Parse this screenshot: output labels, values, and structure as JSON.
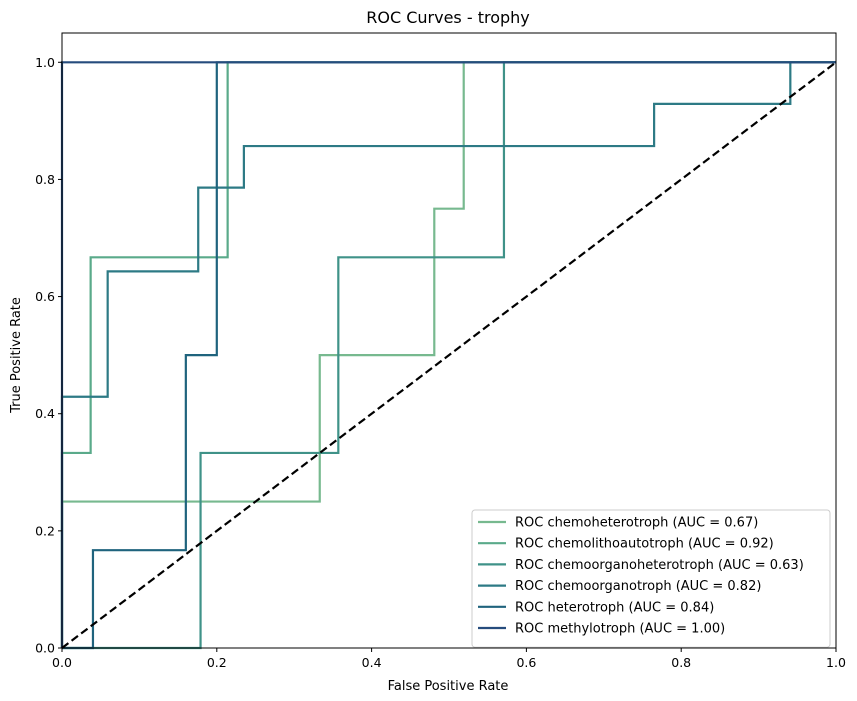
{
  "chart_data": {
    "type": "line",
    "title": "ROC Curves - trophy",
    "xlabel": "False Positive Rate",
    "ylabel": "True Positive Rate",
    "xlim": [
      0,
      1
    ],
    "ylim": [
      0,
      1.05
    ],
    "xticks": [
      "0.0",
      "0.2",
      "0.4",
      "0.6",
      "0.8",
      "1.0"
    ],
    "yticks": [
      "0.0",
      "0.2",
      "0.4",
      "0.6",
      "0.8",
      "1.0"
    ],
    "grid": false,
    "legend_position": "lower-right",
    "series": [
      {
        "name": "ROC chemoheterotroph (AUC = 0.67)",
        "color": "#77b98f",
        "x": [
          0,
          0,
          0.333,
          0.333,
          0.481,
          0.481,
          0.519,
          0.519,
          1.0
        ],
        "y": [
          0,
          0.25,
          0.25,
          0.5,
          0.5,
          0.75,
          0.75,
          1.0,
          1.0
        ]
      },
      {
        "name": "ROC chemolithoautotroph (AUC = 0.92)",
        "color": "#5aaa8a",
        "x": [
          0,
          0,
          0.037,
          0.037,
          0.214,
          0.214,
          1.0
        ],
        "y": [
          0,
          0.333,
          0.333,
          0.667,
          0.667,
          1.0,
          1.0
        ]
      },
      {
        "name": "ROC chemoorganoheterotroph (AUC = 0.63)",
        "color": "#3f9288",
        "x": [
          0,
          0.179,
          0.179,
          0.357,
          0.357,
          0.571,
          0.571,
          1.0
        ],
        "y": [
          0,
          0,
          0.333,
          0.333,
          0.667,
          0.667,
          1.0,
          1.0
        ]
      },
      {
        "name": "ROC chemoorganotroph (AUC = 0.82)",
        "color": "#2d7a85",
        "x": [
          0,
          0,
          0.059,
          0.059,
          0.176,
          0.176,
          0.235,
          0.235,
          0.765,
          0.765,
          0.941,
          0.941,
          1.0
        ],
        "y": [
          0,
          0.429,
          0.429,
          0.643,
          0.643,
          0.786,
          0.786,
          0.857,
          0.857,
          0.929,
          0.929,
          1.0,
          1.0
        ]
      },
      {
        "name": "ROC heterotroph (AUC = 0.84)",
        "color": "#1f637d",
        "x": [
          0,
          0.04,
          0.04,
          0.16,
          0.16,
          0.2,
          0.2,
          1.0
        ],
        "y": [
          0,
          0,
          0.167,
          0.167,
          0.5,
          0.5,
          1.0,
          1.0
        ]
      },
      {
        "name": "ROC methylotroph (AUC = 1.00)",
        "color": "#264c7d",
        "x": [
          0,
          0,
          1.0
        ],
        "y": [
          0,
          1.0,
          1.0
        ]
      }
    ],
    "reference_line": {
      "x": [
        0,
        1
      ],
      "y": [
        0,
        1
      ],
      "color": "#000000",
      "style": "dashed"
    }
  }
}
